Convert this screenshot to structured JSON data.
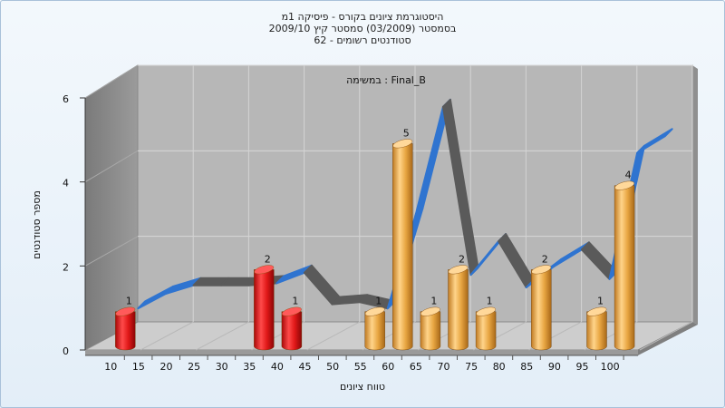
{
  "chart_data": {
    "type": "bar",
    "title_lines": [
      "היסטוגרמת ציונים בקורס - פיסיקה 1מ",
      "בסמסטר  (03/2009)  סמסטר קיץ 2009/10",
      "סטודנטים רשומים - 62"
    ],
    "inner_label": "במשימה : Final_B",
    "xlabel": "טווח ציונים",
    "ylabel": "מספר סטודנטים",
    "ylim": [
      0,
      6
    ],
    "yticks": [
      0,
      2,
      4,
      6
    ],
    "xticks": [
      "10",
      "15",
      "20",
      "25",
      "30",
      "35",
      "40",
      "45",
      "50",
      "55",
      "60",
      "65",
      "70",
      "75",
      "80",
      "85",
      "90",
      "95",
      "100"
    ],
    "bars": [
      {
        "x": 10,
        "value": 1,
        "label": "1",
        "color": "red"
      },
      {
        "x": 35,
        "value": 2,
        "label": "2",
        "color": "red"
      },
      {
        "x": 40,
        "value": 1,
        "label": "1",
        "color": "red"
      },
      {
        "x": 55,
        "value": 1,
        "label": "1",
        "color": "orange"
      },
      {
        "x": 60,
        "value": 5,
        "label": "5",
        "color": "orange"
      },
      {
        "x": 65,
        "value": 1,
        "label": "1",
        "color": "orange"
      },
      {
        "x": 70,
        "value": 2,
        "label": "2",
        "color": "orange"
      },
      {
        "x": 75,
        "value": 1,
        "label": "1",
        "color": "orange"
      },
      {
        "x": 85,
        "value": 2,
        "label": "2",
        "color": "orange"
      },
      {
        "x": 95,
        "value": 1,
        "label": "1",
        "color": "orange"
      },
      {
        "x": 100,
        "value": 4,
        "label": "4",
        "color": "orange"
      }
    ],
    "distribution_curve": {
      "x": [
        10,
        15,
        20,
        25,
        30,
        35,
        40,
        45,
        50,
        55,
        60,
        65,
        70,
        75,
        80,
        85,
        90,
        95,
        100,
        105
      ],
      "y": [
        0.6,
        0.95,
        1.15,
        1.15,
        1.15,
        1.2,
        1.45,
        0.7,
        0.75,
        0.6,
        2.8,
        5.4,
        1.4,
        2.2,
        1.1,
        1.6,
        2.0,
        1.3,
        4.3,
        4.7
      ]
    },
    "colors": {
      "red": "#e01818",
      "orange": "#e8a642",
      "curve_front": "#5a5a5a",
      "curve_side": "#2f74d0",
      "back_wall": "#b5b5b5",
      "left_wall": "#8c8c8c",
      "floor": "#c8c8c8"
    },
    "grid": true,
    "legend": "none"
  }
}
